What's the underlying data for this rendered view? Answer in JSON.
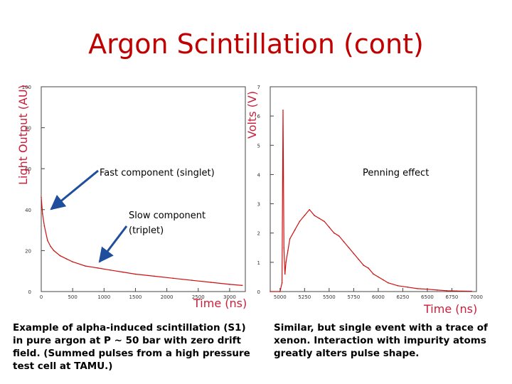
{
  "title": "Argon Scintillation (cont)",
  "left_caption": [
    "Example of alpha-induced scintillation (S1)",
    "in pure argon at P ~ 50 bar with zero drift",
    "field. (Summed pulses from a high pressure",
    "test cell at TAMU.)"
  ],
  "right_caption": [
    "Similar, but single event with a trace of",
    "xenon. Interaction  with impurity atoms",
    "greatly alters pulse shape."
  ],
  "colors": {
    "title": "#c00000",
    "trace": "#cc1111",
    "axis_title": "#c81e3a",
    "arrow": "#1f4e9c"
  },
  "chart_data": [
    {
      "type": "line",
      "title": "",
      "xlabel": "Time (ns)",
      "ylabel": "Light Output (AU)",
      "xlim": [
        0,
        3250
      ],
      "ylim": [
        0,
        100
      ],
      "x_ticks": [
        "0",
        "500",
        "1000",
        "1500",
        "2000",
        "2500",
        "3000"
      ],
      "y_ticks": [
        "0",
        "20",
        "40",
        "60",
        "80",
        "100"
      ],
      "annotations": [
        "Fast component (singlet)",
        "Slow component",
        "(triplet)"
      ],
      "series": [
        {
          "x": [
            0,
            20,
            50,
            100,
            150,
            200,
            300,
            400,
            500,
            700,
            900,
            1100,
            1300,
            1500,
            1800,
            2100,
            2400,
            2700,
            3000,
            3200
          ],
          "values": [
            46,
            38,
            32,
            25,
            22,
            20,
            17.5,
            16,
            14.5,
            12.5,
            11.5,
            10.5,
            9.5,
            8.5,
            7.5,
            6.5,
            5.5,
            4.5,
            3.5,
            3
          ]
        }
      ]
    },
    {
      "type": "line",
      "title": "",
      "xlabel": "Time (ns)",
      "ylabel": "Volts (V)",
      "xlim": [
        4900,
        7000
      ],
      "ylim": [
        0,
        7
      ],
      "x_ticks": [
        "5000",
        "5250",
        "5500",
        "5750",
        "6000",
        "6250",
        "6500",
        "6750",
        "7000"
      ],
      "y_ticks": [
        "0",
        "1",
        "2",
        "3",
        "4",
        "5",
        "6",
        "7"
      ],
      "annotations": [
        "Penning effect"
      ],
      "series": [
        {
          "x": [
            4900,
            5000,
            5020,
            5030,
            5040,
            5050,
            5060,
            5080,
            5100,
            5150,
            5200,
            5250,
            5300,
            5350,
            5400,
            5450,
            5500,
            5550,
            5600,
            5650,
            5700,
            5750,
            5800,
            5850,
            5900,
            5950,
            6000,
            6050,
            6100,
            6200,
            6300,
            6400,
            6500,
            6600,
            6700,
            6800,
            6950
          ],
          "values": [
            0,
            0,
            0.3,
            6.2,
            1.5,
            0.6,
            1.0,
            1.4,
            1.8,
            2.1,
            2.4,
            2.6,
            2.8,
            2.6,
            2.5,
            2.4,
            2.2,
            2.0,
            1.9,
            1.7,
            1.5,
            1.3,
            1.1,
            0.9,
            0.8,
            0.6,
            0.5,
            0.4,
            0.3,
            0.2,
            0.15,
            0.1,
            0.08,
            0.05,
            0.03,
            0.02,
            0.01
          ]
        }
      ]
    }
  ]
}
